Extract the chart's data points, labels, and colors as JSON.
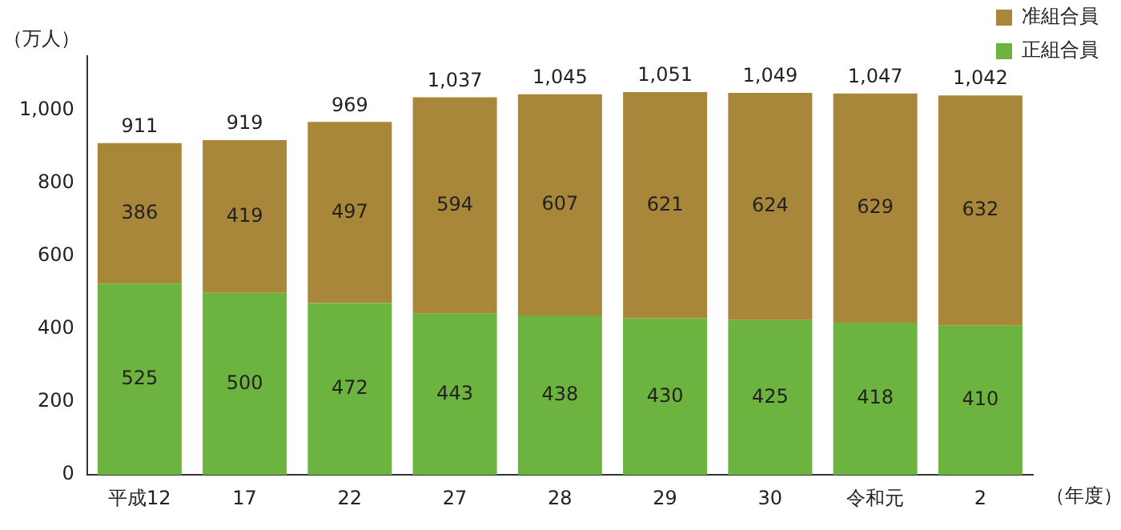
{
  "chart_data": {
    "type": "bar",
    "stacked": true,
    "ylabel": "（万人）",
    "xlabel": "（年度）",
    "categories": [
      "平成12",
      "17",
      "22",
      "27",
      "28",
      "29",
      "30",
      "令和元",
      "2"
    ],
    "series": [
      {
        "name": "正組合員",
        "color": "#6cb33f",
        "values": [
          525,
          500,
          472,
          443,
          438,
          430,
          425,
          418,
          410
        ]
      },
      {
        "name": "准組合員",
        "color": "#a8873a",
        "values": [
          386,
          419,
          497,
          594,
          607,
          621,
          624,
          629,
          632
        ]
      }
    ],
    "totals": [
      "911",
      "919",
      "969",
      "1,037",
      "1,045",
      "1,051",
      "1,049",
      "1,047",
      "1,042"
    ],
    "data_labels": true,
    "ylim": [
      0,
      1150
    ],
    "yticks": [
      0,
      200,
      400,
      600,
      800,
      {
        "value": 1000,
        "label": "1,000"
      }
    ],
    "grid": false,
    "legend": "top right"
  }
}
